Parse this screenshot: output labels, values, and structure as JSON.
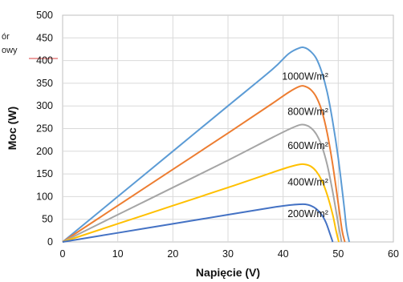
{
  "chart_data": {
    "type": "line",
    "title": "",
    "xlabel": "Napięcie (V)",
    "ylabel": "Moc (W)",
    "xlim": [
      0,
      60
    ],
    "ylim": [
      0,
      500
    ],
    "x_ticks": [
      0,
      10,
      20,
      30,
      40,
      50,
      60
    ],
    "y_ticks": [
      0,
      50,
      100,
      150,
      200,
      250,
      300,
      350,
      400,
      450,
      500
    ],
    "grid": true,
    "legend": "none",
    "side_note": [
      "ór",
      "owy"
    ],
    "series": [
      {
        "name": "1000W/m²",
        "color": "#5b9bd5",
        "x": [
          0,
          10,
          20,
          30,
          38,
          41,
          43,
          44,
          45,
          46,
          47,
          48,
          49,
          50,
          51,
          51.5,
          52
        ],
        "y": [
          0,
          100,
          200,
          300,
          380,
          415,
          428,
          428,
          420,
          405,
          375,
          330,
          265,
          185,
          85,
          30,
          0
        ]
      },
      {
        "name": "800W/m²",
        "color": "#ed7d31",
        "x": [
          0,
          10,
          20,
          30,
          38,
          41,
          43,
          44,
          45,
          46,
          47,
          48,
          49,
          50,
          50.7,
          51.2
        ],
        "y": [
          0,
          80,
          160,
          240,
          305,
          330,
          343,
          343,
          336,
          320,
          290,
          240,
          170,
          85,
          25,
          0
        ]
      },
      {
        "name": "600W/m²",
        "color": "#a5a5a5",
        "x": [
          0,
          10,
          20,
          30,
          38,
          41,
          43,
          44,
          45,
          46,
          47,
          48,
          49,
          50,
          50.6
        ],
        "y": [
          0,
          60,
          120,
          180,
          230,
          248,
          258,
          258,
          252,
          238,
          212,
          170,
          110,
          40,
          0
        ]
      },
      {
        "name": "400W/m²",
        "color": "#ffc000",
        "x": [
          0,
          10,
          20,
          30,
          38,
          41,
          43,
          44,
          45,
          46,
          47,
          48,
          49,
          49.6,
          50.1
        ],
        "y": [
          0,
          40,
          80,
          120,
          153,
          165,
          171,
          171,
          167,
          156,
          136,
          104,
          60,
          25,
          0
        ]
      },
      {
        "name": "200W/m²",
        "color": "#4472c4",
        "x": [
          0,
          10,
          20,
          30,
          38,
          41,
          43,
          44,
          45,
          46,
          47,
          47.8,
          48.5,
          49
        ],
        "y": [
          0,
          20,
          40,
          60,
          76,
          81,
          83,
          83,
          80,
          73,
          60,
          42,
          18,
          0
        ]
      }
    ],
    "label_positions": {
      "1000W/m²": [
        44,
        358
      ],
      "800W/m²": [
        44.5,
        280
      ],
      "600W/m²": [
        44.5,
        205
      ],
      "400W/m²": [
        44.5,
        125
      ],
      "200W/m²": [
        44.5,
        55
      ]
    }
  }
}
